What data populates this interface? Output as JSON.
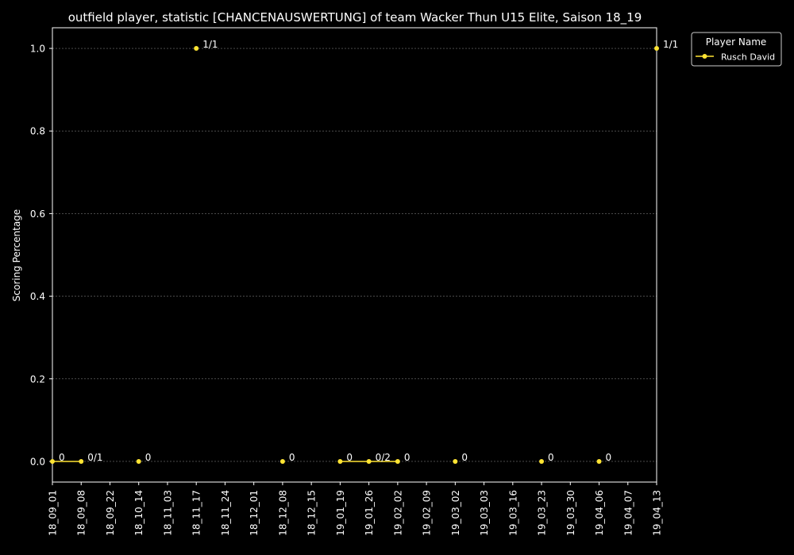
{
  "chart_data": {
    "type": "line",
    "title": "outfield player, statistic [CHANCENAUSWERTUNG] of team Wacker Thun U15 Elite, Saison 18_19",
    "xlabel": "",
    "ylabel": "Scoring Percentage",
    "ylim": [
      -0.05,
      1.05
    ],
    "y_ticks": [
      "0.0",
      "0.2",
      "0.4",
      "0.6",
      "0.8",
      "1.0"
    ],
    "y_tick_values": [
      0,
      0.2,
      0.4,
      0.6,
      0.8,
      1.0
    ],
    "x_ticks": [
      "18_09_01",
      "18_09_08",
      "18_09_22",
      "18_10_14",
      "18_11_03",
      "18_11_17",
      "18_11_24",
      "18_12_01",
      "18_12_08",
      "18_12_15",
      "19_01_19",
      "19_01_26",
      "19_02_02",
      "19_02_09",
      "19_03_02",
      "19_03_03",
      "19_03_16",
      "19_03_23",
      "19_03_30",
      "19_04_06",
      "19_04_07",
      "19_04_13"
    ],
    "grid": true,
    "legend": {
      "title": "Player Name",
      "placement": "top-right outside"
    },
    "series": [
      {
        "name": "Rusch David",
        "color": "#ffe433",
        "points": [
          {
            "x": "18_09_01",
            "y": 0,
            "label": "0",
            "connect": true
          },
          {
            "x": "18_09_08",
            "y": 0,
            "label": "0/1",
            "connect": true
          },
          {
            "x": "18_10_14",
            "y": 0,
            "label": "0",
            "connect": false
          },
          {
            "x": "18_11_17",
            "y": 1.0,
            "label": "1/1",
            "connect": false
          },
          {
            "x": "18_12_08",
            "y": 0,
            "label": "0",
            "connect": false
          },
          {
            "x": "19_01_19",
            "y": 0,
            "label": "0",
            "connect": true
          },
          {
            "x": "19_01_26",
            "y": 0,
            "label": "0/2",
            "connect": true
          },
          {
            "x": "19_02_02",
            "y": 0,
            "label": "0",
            "connect": true
          },
          {
            "x": "19_03_02",
            "y": 0,
            "label": "0",
            "connect": false
          },
          {
            "x": "19_03_23",
            "y": 0,
            "label": "0",
            "connect": false
          },
          {
            "x": "19_04_06",
            "y": 0,
            "label": "0",
            "connect": false
          },
          {
            "x": "19_04_13",
            "y": 1.0,
            "label": "1/1",
            "connect": false
          }
        ]
      }
    ]
  }
}
